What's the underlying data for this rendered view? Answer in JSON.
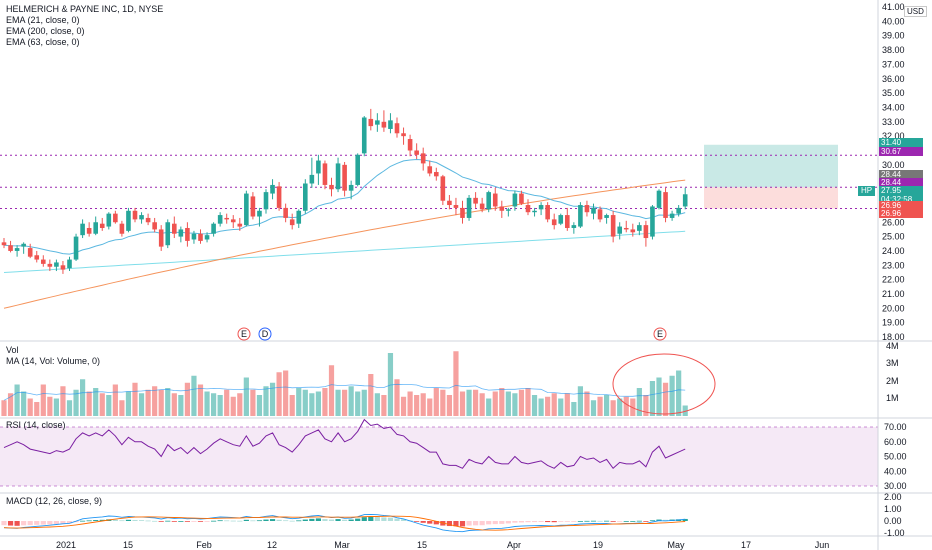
{
  "legend": {
    "title": "HELMERICH & PAYNE INC, 1D, NYSE",
    "ema21": "EMA (21, close, 0)",
    "ema200": "EMA (200, close, 0)",
    "ema63": "EMA (63, close, 0)",
    "vol": "Vol",
    "vol_ma": "MA (14, Vol: Volume, 0)",
    "rsi": "RSI (14, close)",
    "macd": "MACD (12, 26, close, 9)"
  },
  "currency": "USD",
  "symbol_tag": "HP",
  "price_axis": {
    "ticks": [
      "41.00",
      "40.00",
      "39.00",
      "38.00",
      "37.00",
      "36.00",
      "35.00",
      "34.00",
      "33.00",
      "32.00",
      "31.00",
      "30.00",
      "29.00",
      "28.00",
      "27.00",
      "26.00",
      "25.00",
      "24.00",
      "23.00",
      "22.00",
      "21.00",
      "20.00",
      "19.00",
      "18.00"
    ],
    "tags": {
      "target": "31.40",
      "level_high": "30.67",
      "entry_a": "28.44",
      "entry_b": "28.44",
      "last": "27.95",
      "countdown": "04:32:58",
      "stop_a": "26.96",
      "stop_b": "26.96"
    }
  },
  "volume_axis": [
    "4M",
    "3M",
    "2M",
    "1M"
  ],
  "rsi_axis": [
    "70.00",
    "60.00",
    "50.00",
    "40.00",
    "30.00"
  ],
  "macd_axis": [
    "2.00",
    "1.00",
    "0.00",
    "-1.00"
  ],
  "time_axis": [
    "2021",
    "15",
    "Feb",
    "12",
    "Mar",
    "15",
    "Apr",
    "19",
    "May",
    "17",
    "Jun"
  ],
  "events": [
    "E",
    "D",
    "E"
  ],
  "colors": {
    "up": "#26a69a",
    "down": "#ef5350",
    "ema21": "#5cb8e0",
    "ema200": "#80deea",
    "ema63": "#f5945c",
    "rsi": "#7b1fa2",
    "target_tag": "#26a69a",
    "level_tag": "#9c27b0",
    "entry_tag": "#777777",
    "stop_tag": "#ef5350"
  },
  "chart_data": {
    "type": "candlestick",
    "candles_ohlc": [
      [
        24.6,
        24.9,
        24.2,
        24.4
      ],
      [
        24.4,
        24.7,
        23.9,
        24.0
      ],
      [
        24.0,
        24.4,
        23.6,
        24.2
      ],
      [
        24.3,
        24.6,
        23.8,
        24.5
      ],
      [
        24.2,
        24.5,
        23.5,
        23.6
      ],
      [
        23.7,
        24.0,
        23.2,
        23.4
      ],
      [
        23.4,
        23.7,
        22.9,
        23.1
      ],
      [
        23.1,
        23.4,
        22.6,
        22.9
      ],
      [
        22.9,
        23.4,
        22.6,
        23.2
      ],
      [
        23.0,
        23.3,
        22.4,
        22.7
      ],
      [
        22.8,
        23.6,
        22.6,
        23.4
      ],
      [
        23.4,
        25.2,
        23.3,
        25.0
      ],
      [
        25.1,
        26.2,
        24.9,
        25.9
      ],
      [
        25.6,
        26.0,
        25.0,
        25.2
      ],
      [
        25.2,
        26.4,
        25.1,
        26.0
      ],
      [
        25.9,
        26.3,
        25.4,
        25.6
      ],
      [
        25.7,
        26.7,
        25.5,
        26.6
      ],
      [
        26.6,
        26.8,
        25.9,
        26.0
      ],
      [
        25.9,
        26.1,
        25.0,
        25.2
      ],
      [
        25.4,
        27.0,
        25.3,
        26.8
      ],
      [
        26.8,
        27.0,
        26.0,
        26.2
      ],
      [
        26.2,
        26.7,
        25.9,
        26.5
      ],
      [
        26.3,
        26.6,
        25.8,
        26.0
      ],
      [
        26.0,
        26.3,
        25.3,
        25.5
      ],
      [
        25.5,
        25.8,
        24.0,
        24.3
      ],
      [
        24.4,
        26.2,
        24.2,
        26.0
      ],
      [
        25.9,
        26.4,
        24.9,
        25.2
      ],
      [
        25.0,
        25.7,
        24.6,
        25.5
      ],
      [
        25.6,
        26.0,
        24.3,
        24.7
      ],
      [
        24.8,
        25.4,
        24.5,
        25.2
      ],
      [
        25.2,
        25.5,
        24.5,
        24.7
      ],
      [
        24.8,
        25.3,
        24.6,
        25.1
      ],
      [
        25.2,
        26.0,
        25.0,
        25.9
      ],
      [
        25.9,
        26.7,
        25.7,
        26.5
      ],
      [
        26.3,
        26.6,
        25.9,
        26.2
      ],
      [
        26.2,
        26.5,
        25.6,
        26.0
      ],
      [
        25.9,
        26.3,
        25.4,
        25.7
      ],
      [
        25.8,
        28.2,
        25.7,
        28.0
      ],
      [
        27.8,
        28.1,
        26.2,
        26.4
      ],
      [
        26.4,
        27.0,
        25.7,
        26.8
      ],
      [
        26.9,
        28.3,
        26.6,
        28.1
      ],
      [
        28.0,
        29.0,
        27.6,
        28.6
      ],
      [
        28.5,
        28.8,
        26.8,
        27.0
      ],
      [
        27.0,
        27.3,
        26.0,
        26.3
      ],
      [
        26.2,
        26.6,
        25.5,
        25.8
      ],
      [
        25.9,
        26.9,
        25.6,
        26.8
      ],
      [
        26.8,
        29.0,
        26.6,
        28.7
      ],
      [
        28.7,
        30.5,
        28.4,
        29.3
      ],
      [
        29.4,
        30.7,
        28.6,
        30.3
      ],
      [
        30.1,
        30.3,
        28.3,
        28.6
      ],
      [
        28.6,
        29.1,
        27.8,
        28.3
      ],
      [
        28.3,
        30.5,
        28.1,
        30.1
      ],
      [
        30.0,
        30.2,
        27.8,
        28.2
      ],
      [
        28.2,
        28.9,
        27.6,
        28.6
      ],
      [
        28.6,
        30.8,
        28.5,
        30.7
      ],
      [
        30.8,
        33.4,
        30.6,
        33.3
      ],
      [
        33.2,
        33.9,
        32.4,
        32.7
      ],
      [
        32.8,
        33.6,
        32.3,
        33.1
      ],
      [
        33.0,
        33.8,
        32.3,
        32.6
      ],
      [
        32.5,
        33.6,
        32.2,
        33.1
      ],
      [
        32.9,
        33.3,
        31.9,
        32.2
      ],
      [
        32.2,
        32.6,
        31.4,
        32.0
      ],
      [
        31.8,
        32.1,
        30.6,
        31.0
      ],
      [
        31.0,
        31.5,
        30.4,
        30.7
      ],
      [
        30.8,
        31.2,
        29.6,
        30.1
      ],
      [
        29.9,
        30.3,
        29.2,
        29.4
      ],
      [
        29.5,
        29.8,
        28.9,
        29.2
      ],
      [
        29.2,
        29.3,
        27.2,
        27.5
      ],
      [
        27.5,
        27.9,
        26.9,
        27.2
      ],
      [
        27.2,
        27.7,
        26.5,
        27.0
      ],
      [
        27.0,
        27.5,
        25.9,
        26.3
      ],
      [
        26.3,
        27.9,
        26.1,
        27.7
      ],
      [
        27.7,
        28.1,
        27.0,
        27.3
      ],
      [
        27.3,
        27.7,
        26.7,
        26.9
      ],
      [
        26.9,
        28.2,
        26.7,
        28.1
      ],
      [
        28.0,
        28.4,
        26.8,
        27.1
      ],
      [
        27.1,
        27.5,
        26.3,
        26.8
      ],
      [
        26.8,
        27.0,
        26.4,
        26.9
      ],
      [
        27.1,
        28.2,
        26.8,
        28.0
      ],
      [
        28.0,
        28.2,
        27.2,
        27.3
      ],
      [
        27.2,
        27.6,
        26.5,
        26.7
      ],
      [
        26.7,
        27.0,
        26.4,
        26.8
      ],
      [
        26.9,
        27.4,
        26.5,
        27.2
      ],
      [
        27.2,
        27.4,
        26.0,
        26.2
      ],
      [
        26.2,
        26.6,
        25.5,
        25.8
      ],
      [
        25.9,
        26.6,
        25.8,
        26.5
      ],
      [
        26.5,
        27.0,
        25.4,
        25.6
      ],
      [
        25.6,
        26.0,
        25.2,
        25.8
      ],
      [
        25.7,
        27.4,
        25.6,
        27.2
      ],
      [
        27.2,
        27.5,
        26.4,
        26.7
      ],
      [
        26.6,
        27.3,
        26.2,
        27.0
      ],
      [
        26.9,
        27.1,
        26.0,
        26.2
      ],
      [
        26.3,
        26.6,
        25.9,
        26.5
      ],
      [
        26.5,
        26.8,
        24.6,
        25.0
      ],
      [
        25.2,
        26.0,
        24.8,
        25.7
      ],
      [
        25.6,
        26.1,
        25.3,
        25.5
      ],
      [
        25.5,
        25.9,
        25.0,
        25.3
      ],
      [
        25.4,
        26.0,
        25.1,
        25.8
      ],
      [
        25.8,
        26.1,
        24.3,
        24.9
      ],
      [
        25.0,
        27.2,
        24.8,
        27.1
      ],
      [
        27.0,
        28.3,
        26.9,
        28.2
      ],
      [
        28.1,
        28.4,
        26.0,
        26.3
      ],
      [
        26.3,
        26.8,
        26.1,
        26.6
      ],
      [
        26.6,
        27.2,
        26.4,
        27.0
      ],
      [
        27.1,
        28.4,
        26.9,
        27.95
      ]
    ],
    "volume_millions": [
      0.9,
      1.3,
      1.8,
      1.4,
      1.0,
      0.8,
      1.8,
      1.1,
      1.0,
      1.7,
      0.9,
      1.5,
      2.1,
      1.4,
      1.6,
      1.3,
      1.2,
      1.8,
      0.9,
      1.4,
      1.9,
      1.3,
      1.5,
      1.7,
      1.5,
      1.6,
      1.3,
      1.2,
      1.9,
      2.3,
      1.8,
      1.4,
      1.3,
      1.2,
      1.5,
      1.1,
      1.3,
      2.2,
      1.5,
      1.2,
      1.7,
      1.9,
      2.5,
      2.6,
      1.2,
      1.6,
      1.5,
      1.3,
      1.4,
      1.6,
      2.9,
      1.5,
      1.5,
      1.7,
      1.4,
      1.5,
      2.4,
      1.3,
      1.2,
      3.6,
      2.1,
      1.1,
      1.4,
      1.2,
      1.3,
      1.0,
      1.6,
      1.5,
      1.2,
      3.7,
      1.4,
      1.5,
      1.5,
      1.3,
      1.0,
      1.4,
      1.6,
      1.4,
      1.3,
      1.5,
      1.6,
      1.2,
      1.0,
      1.1,
      1.3,
      1.0,
      1.3,
      0.8,
      1.7,
      1.4,
      0.9,
      1.1,
      1.2,
      0.9,
      1.0,
      1.1,
      1.0,
      1.6,
      1.2,
      2.0,
      2.2,
      1.9,
      2.3,
      2.6,
      0.6
    ],
    "rsi": [
      56,
      58,
      60,
      58,
      55,
      54,
      53,
      52,
      54,
      53,
      55,
      62,
      66,
      64,
      66,
      64,
      68,
      64,
      58,
      63,
      60,
      60,
      57,
      55,
      50,
      58,
      54,
      56,
      52,
      56,
      52,
      55,
      59,
      62,
      60,
      58,
      57,
      64,
      57,
      59,
      64,
      66,
      58,
      56,
      53,
      58,
      64,
      66,
      68,
      62,
      60,
      66,
      60,
      62,
      67,
      75,
      71,
      72,
      69,
      70,
      65,
      64,
      60,
      59,
      56,
      53,
      53,
      45,
      44,
      44,
      42,
      48,
      46,
      45,
      50,
      46,
      45,
      45,
      50,
      46,
      45,
      46,
      47,
      44,
      42,
      46,
      43,
      44,
      50,
      48,
      49,
      46,
      48,
      42,
      46,
      45,
      45,
      47,
      43,
      53,
      57,
      49,
      51,
      53,
      55
    ],
    "macd_hist": [
      -0.35,
      -0.38,
      -0.4,
      -0.36,
      -0.34,
      -0.32,
      -0.3,
      -0.28,
      -0.25,
      -0.22,
      -0.2,
      -0.1,
      0.02,
      0.05,
      0.08,
      0.1,
      0.14,
      0.12,
      0.06,
      0.1,
      0.08,
      0.07,
      0.04,
      0.01,
      -0.05,
      0.02,
      -0.02,
      0.0,
      -0.04,
      -0.02,
      -0.05,
      -0.03,
      0.02,
      0.06,
      0.05,
      0.03,
      0.02,
      0.1,
      0.05,
      0.06,
      0.12,
      0.16,
      0.1,
      0.06,
      0.02,
      0.05,
      0.12,
      0.18,
      0.22,
      0.16,
      0.12,
      0.16,
      0.1,
      0.12,
      0.2,
      0.32,
      0.34,
      0.33,
      0.3,
      0.28,
      0.2,
      0.15,
      0.05,
      -0.05,
      -0.15,
      -0.22,
      -0.28,
      -0.38,
      -0.42,
      -0.44,
      -0.45,
      -0.38,
      -0.36,
      -0.35,
      -0.28,
      -0.26,
      -0.24,
      -0.2,
      -0.14,
      -0.12,
      -0.1,
      -0.09,
      -0.08,
      -0.09,
      -0.1,
      -0.06,
      -0.06,
      -0.04,
      0.0,
      0.01,
      0.02,
      0.01,
      0.02,
      -0.02,
      -0.01,
      0.0,
      0.0,
      0.02,
      -0.02,
      0.06,
      0.12,
      0.1,
      0.12,
      0.14,
      0.17
    ],
    "position": {
      "entry": 28.44,
      "target": 31.4,
      "stop": 26.96
    },
    "levels": [
      30.67,
      28.44,
      26.96
    ],
    "ylim": [
      17.5,
      41.2
    ]
  }
}
